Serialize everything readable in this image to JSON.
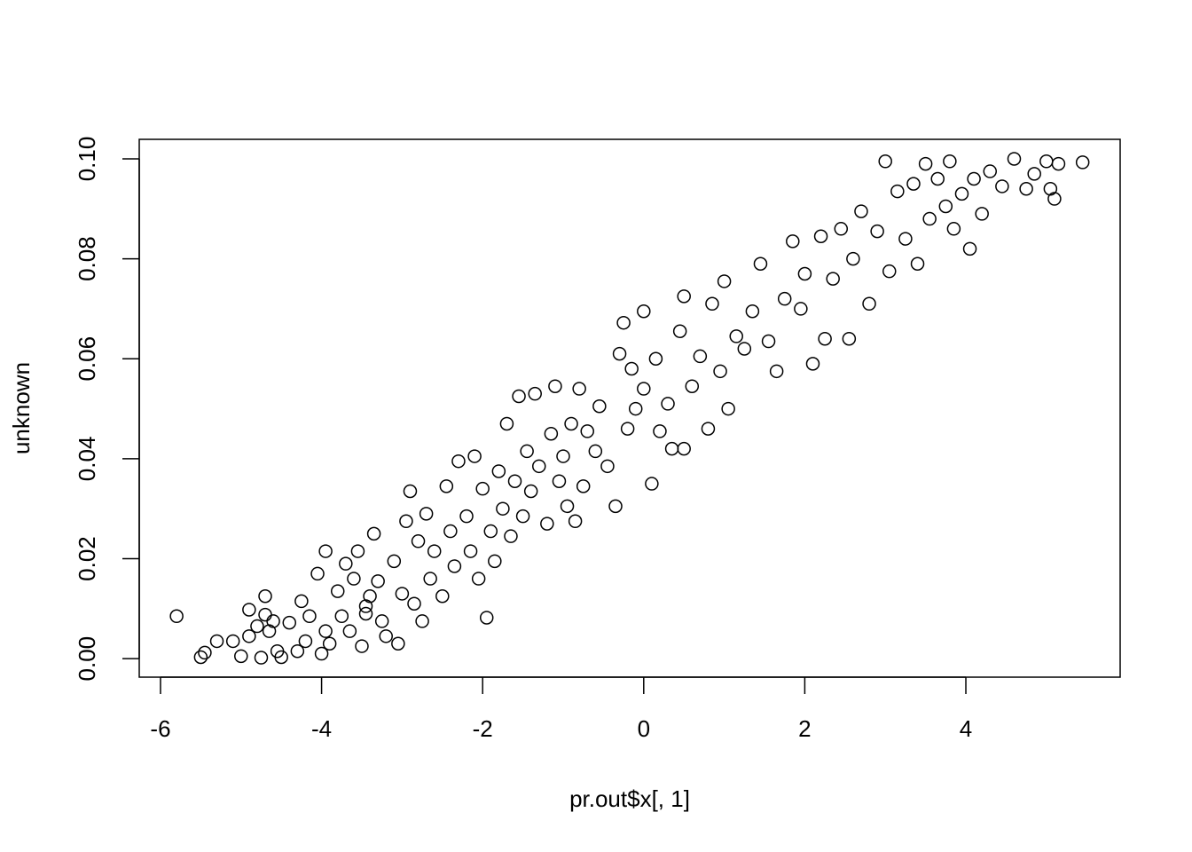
{
  "chart_data": {
    "type": "scatter",
    "xlabel": "pr.out$x[, 1]",
    "ylabel": "unknown",
    "color": "#000000",
    "x": [
      -5.8,
      -5.5,
      -5.45,
      -5.3,
      -5.1,
      -5.0,
      -4.9,
      -4.9,
      -4.8,
      -4.75,
      -4.7,
      -4.7,
      -4.65,
      -4.6,
      -4.55,
      -4.5,
      -4.4,
      -4.3,
      -4.25,
      -4.2,
      -4.15,
      -4.05,
      -4.0,
      -3.95,
      -3.95,
      -3.9,
      -3.8,
      -3.75,
      -3.7,
      -3.65,
      -3.6,
      -3.55,
      -3.5,
      -3.45,
      -3.45,
      -3.4,
      -3.35,
      -3.3,
      -3.25,
      -3.2,
      -3.1,
      -3.05,
      -3.0,
      -2.95,
      -2.9,
      -2.85,
      -2.8,
      -2.75,
      -2.7,
      -2.65,
      -2.6,
      -2.5,
      -2.45,
      -2.4,
      -2.35,
      -2.3,
      -2.2,
      -2.15,
      -2.1,
      -2.05,
      -2.0,
      -1.95,
      -1.9,
      -1.85,
      -1.8,
      -1.75,
      -1.7,
      -1.65,
      -1.6,
      -1.55,
      -1.5,
      -1.45,
      -1.4,
      -1.35,
      -1.3,
      -1.2,
      -1.15,
      -1.1,
      -1.05,
      -1.0,
      -0.95,
      -0.9,
      -0.85,
      -0.8,
      -0.75,
      -0.7,
      -0.6,
      -0.55,
      -0.45,
      -0.35,
      -0.3,
      -0.25,
      -0.2,
      -0.15,
      -0.1,
      0.0,
      0.0,
      0.1,
      0.15,
      0.2,
      0.3,
      0.35,
      0.45,
      0.5,
      0.5,
      0.6,
      0.7,
      0.8,
      0.85,
      0.95,
      1.0,
      1.05,
      1.15,
      1.25,
      1.35,
      1.45,
      1.55,
      1.65,
      1.75,
      1.85,
      1.95,
      2.0,
      2.1,
      2.2,
      2.25,
      2.35,
      2.45,
      2.55,
      2.6,
      2.7,
      2.8,
      2.9,
      3.0,
      3.05,
      3.15,
      3.25,
      3.35,
      3.4,
      3.5,
      3.55,
      3.65,
      3.75,
      3.8,
      3.85,
      3.95,
      4.05,
      4.1,
      4.2,
      4.3,
      4.45,
      4.6,
      4.75,
      4.85,
      5.0,
      5.05,
      5.1,
      5.15,
      5.45
    ],
    "y": [
      0.0085,
      0.0003,
      0.0012,
      0.0035,
      0.0035,
      0.0005,
      0.0045,
      0.0098,
      0.0065,
      0.0002,
      0.0125,
      0.0088,
      0.0055,
      0.0075,
      0.0015,
      0.0003,
      0.0072,
      0.0015,
      0.0115,
      0.0035,
      0.0085,
      0.017,
      0.001,
      0.0055,
      0.0215,
      0.003,
      0.0135,
      0.0085,
      0.019,
      0.0055,
      0.016,
      0.0215,
      0.0025,
      0.0105,
      0.009,
      0.0125,
      0.025,
      0.0155,
      0.0075,
      0.0045,
      0.0195,
      0.003,
      0.013,
      0.0275,
      0.0335,
      0.011,
      0.0235,
      0.0075,
      0.029,
      0.016,
      0.0215,
      0.0125,
      0.0345,
      0.0255,
      0.0185,
      0.0395,
      0.0285,
      0.0215,
      0.0405,
      0.016,
      0.034,
      0.0082,
      0.0255,
      0.0195,
      0.0375,
      0.03,
      0.047,
      0.0245,
      0.0355,
      0.0525,
      0.0285,
      0.0415,
      0.0335,
      0.053,
      0.0385,
      0.027,
      0.045,
      0.0545,
      0.0355,
      0.0405,
      0.0305,
      0.047,
      0.0275,
      0.054,
      0.0345,
      0.0455,
      0.0415,
      0.0505,
      0.0385,
      0.0305,
      0.061,
      0.0672,
      0.046,
      0.058,
      0.05,
      0.0695,
      0.054,
      0.035,
      0.06,
      0.0455,
      0.051,
      0.042,
      0.0655,
      0.042,
      0.0725,
      0.0545,
      0.0605,
      0.046,
      0.071,
      0.0575,
      0.0755,
      0.05,
      0.0645,
      0.062,
      0.0695,
      0.079,
      0.0635,
      0.0575,
      0.072,
      0.0835,
      0.07,
      0.077,
      0.059,
      0.0845,
      0.064,
      0.076,
      0.086,
      0.064,
      0.08,
      0.0895,
      0.071,
      0.0855,
      0.0995,
      0.0775,
      0.0935,
      0.084,
      0.095,
      0.079,
      0.099,
      0.088,
      0.096,
      0.0905,
      0.0995,
      0.086,
      0.093,
      0.082,
      0.096,
      0.089,
      0.0975,
      0.0945,
      0.1,
      0.094,
      0.097,
      0.0995,
      0.094,
      0.092,
      0.099,
      0.0993
    ],
    "xlim": [
      -6.264,
      5.916
    ],
    "ylim": [
      -0.0037,
      0.1039
    ],
    "xticks": [
      -6,
      -4,
      -2,
      0,
      2,
      4
    ],
    "yticks": [
      {
        "value": 0,
        "label": "0.00"
      },
      0.02,
      0.04,
      0.06,
      0.08,
      {
        "value": 0.1,
        "label": "0.10"
      }
    ]
  }
}
